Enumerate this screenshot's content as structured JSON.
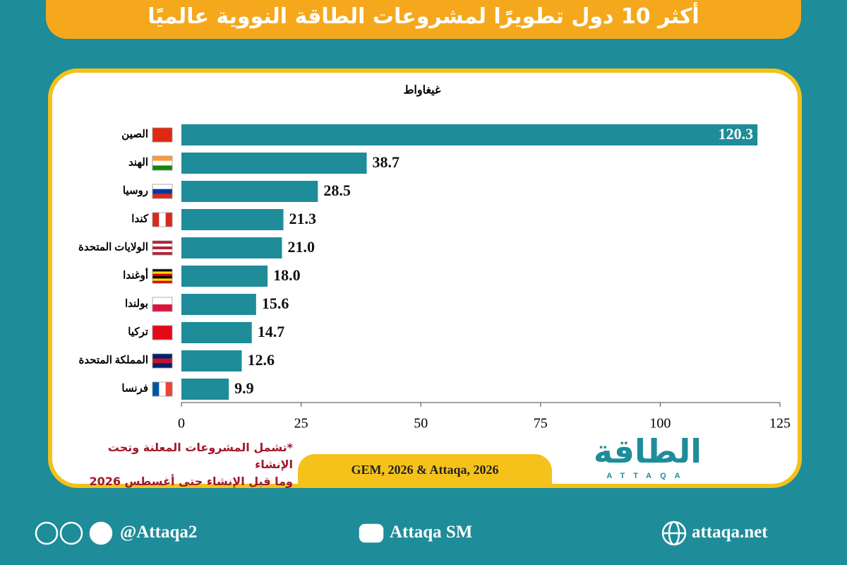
{
  "chart_data": {
    "type": "bar",
    "orientation": "horizontal",
    "title": "أكثر 10 دول تطويرًا لمشروعات الطاقة النووية عالميًا",
    "axis_label": "غيغاواط",
    "categories": [
      "الصين",
      "الهند",
      "روسيا",
      "كندا",
      "الولايات المتحدة",
      "أوغندا",
      "بولندا",
      "تركيا",
      "المملكة المتحدة",
      "فرنسا"
    ],
    "values": [
      120.3,
      38.7,
      28.5,
      21.3,
      21.0,
      18.0,
      15.6,
      14.7,
      12.6,
      9.9
    ],
    "value_labels": [
      "120.3",
      "38.7",
      "28.5",
      "21.3",
      "21.0",
      "18.0",
      "15.6",
      "14.7",
      "12.6",
      "9.9"
    ],
    "color": "#1e8c99",
    "xlim": [
      0,
      125
    ],
    "xticks": [
      0,
      25,
      50,
      75,
      100,
      125
    ]
  },
  "footnote": [
    "*تشمل المشروعات المعلنة وتحت الإنشاء",
    "وما قبل الإنشاء حتى أغسطس 2026"
  ],
  "source": "GEM, 2026 & Attaqa, 2026",
  "logo": {
    "name": "الطاقة",
    "latin": "ATTAQA"
  },
  "footer": {
    "social": "@Attaqa2",
    "youtube": "Attaqa SM",
    "website": "attaqa.net"
  }
}
